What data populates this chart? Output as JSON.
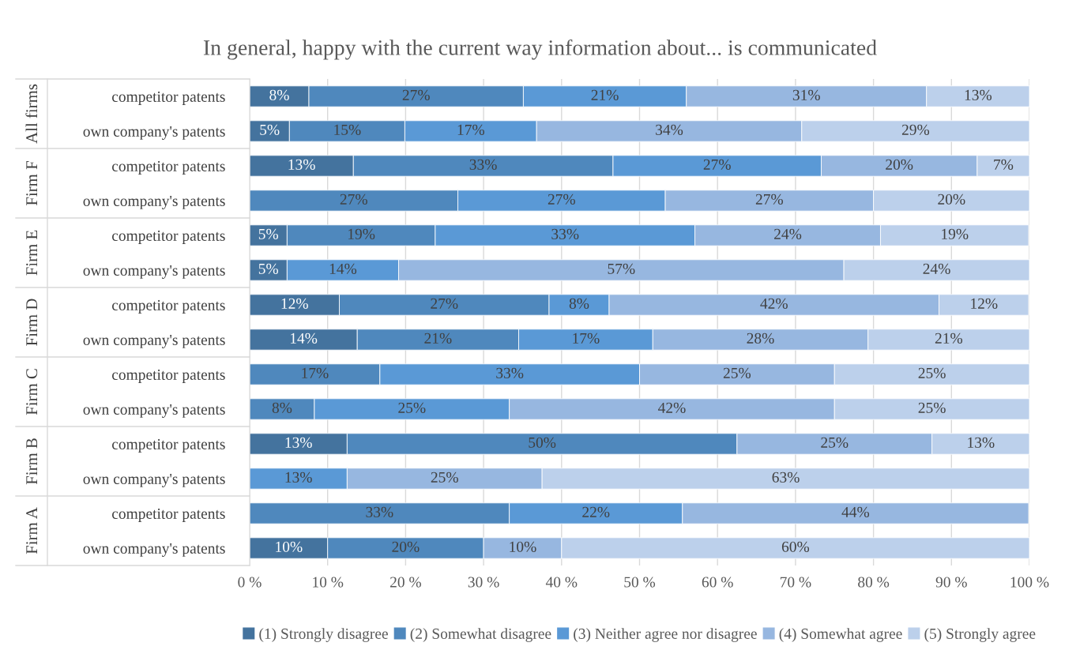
{
  "chart_data": {
    "type": "bar",
    "orientation": "horizontal",
    "stacked": true,
    "title": "In general, happy with the current way information about... is communicated",
    "categories": [
      "competitor patents",
      "own company's patents",
      "competitor patents",
      "own company's patents",
      "competitor patents",
      "own company's patents",
      "competitor patents",
      "own company's patents",
      "competitor patents",
      "own company's patents",
      "competitor patents",
      "own company's patents",
      "competitor patents",
      "own company's patents"
    ],
    "annotations": [
      "All firms",
      "Firm F",
      "Firm E",
      "Firm D",
      "Firm C",
      "Firm B",
      "Firm A"
    ],
    "series": [
      {
        "name": "(1) Strongly disagree",
        "color": "#44739e",
        "values": [
          7.6,
          5.1,
          13.3,
          null,
          4.8,
          4.8,
          11.5,
          13.8,
          null,
          null,
          12.5,
          null,
          null,
          10
        ],
        "value_labels": [
          "8%",
          "5%",
          "13%",
          null,
          "5%",
          "5%",
          "12%",
          "14%",
          null,
          null,
          "13%",
          null,
          null,
          "10%"
        ]
      },
      {
        "name": "(2) Somewhat disagree",
        "color": "#4f88bd",
        "values": [
          27.5,
          14.8,
          33.3,
          26.7,
          19.0,
          null,
          26.9,
          20.7,
          16.7,
          8.3,
          50,
          null,
          33.3,
          20
        ],
        "value_labels": [
          "27%",
          "15%",
          "33%",
          "27%",
          "19%",
          null,
          "27%",
          "21%",
          "17%",
          "8%",
          "50%",
          null,
          "33%",
          "20%"
        ]
      },
      {
        "name": "(3) Neither agree nor disagree",
        "color": "#5a99d6",
        "values": [
          20.9,
          16.9,
          26.7,
          26.6,
          33.3,
          14.3,
          7.7,
          17.2,
          33.3,
          25,
          null,
          12.5,
          22.2,
          null
        ],
        "value_labels": [
          "21%",
          "17%",
          "27%",
          "27%",
          "33%",
          "14%",
          "8%",
          "17%",
          "33%",
          "25%",
          null,
          "13%",
          "22%",
          null
        ]
      },
      {
        "name": "(4) Somewhat agree",
        "color": "#97b7e0",
        "values": [
          30.8,
          34.0,
          20,
          26.7,
          23.8,
          57.1,
          42.3,
          27.6,
          25,
          41.7,
          25,
          25,
          44.4,
          10
        ],
        "value_labels": [
          "31%",
          "34%",
          "20%",
          "27%",
          "24%",
          "57%",
          "42%",
          "28%",
          "25%",
          "42%",
          "25%",
          "25%",
          "44%",
          "10%"
        ]
      },
      {
        "name": "(5) Strongly agree",
        "color": "#bcd0eb",
        "values": [
          13.2,
          29.2,
          6.7,
          20,
          19.0,
          23.8,
          11.5,
          20.7,
          25,
          25,
          12.5,
          62.5,
          null,
          60
        ],
        "value_labels": [
          "13%",
          "29%",
          "7%",
          "20%",
          "19%",
          "24%",
          "12%",
          "21%",
          "25%",
          "25%",
          "13%",
          "63%",
          null,
          "60%"
        ]
      }
    ],
    "xlim": [
      0,
      100
    ],
    "xticks": [
      {
        "value": 0,
        "label": "0 %"
      },
      {
        "value": 10,
        "label": "10 %"
      },
      {
        "value": 20,
        "label": "20 %"
      },
      {
        "value": 30,
        "label": "30 %"
      },
      {
        "value": 40,
        "label": "40 %"
      },
      {
        "value": 50,
        "label": "50 %"
      },
      {
        "value": 60,
        "label": "60 %"
      },
      {
        "value": 70,
        "label": "70 %"
      },
      {
        "value": 80,
        "label": "80 %"
      },
      {
        "value": 90,
        "label": "90 %"
      },
      {
        "value": 100,
        "label": "100 %"
      }
    ],
    "grid": "x",
    "legend": "bottom"
  }
}
